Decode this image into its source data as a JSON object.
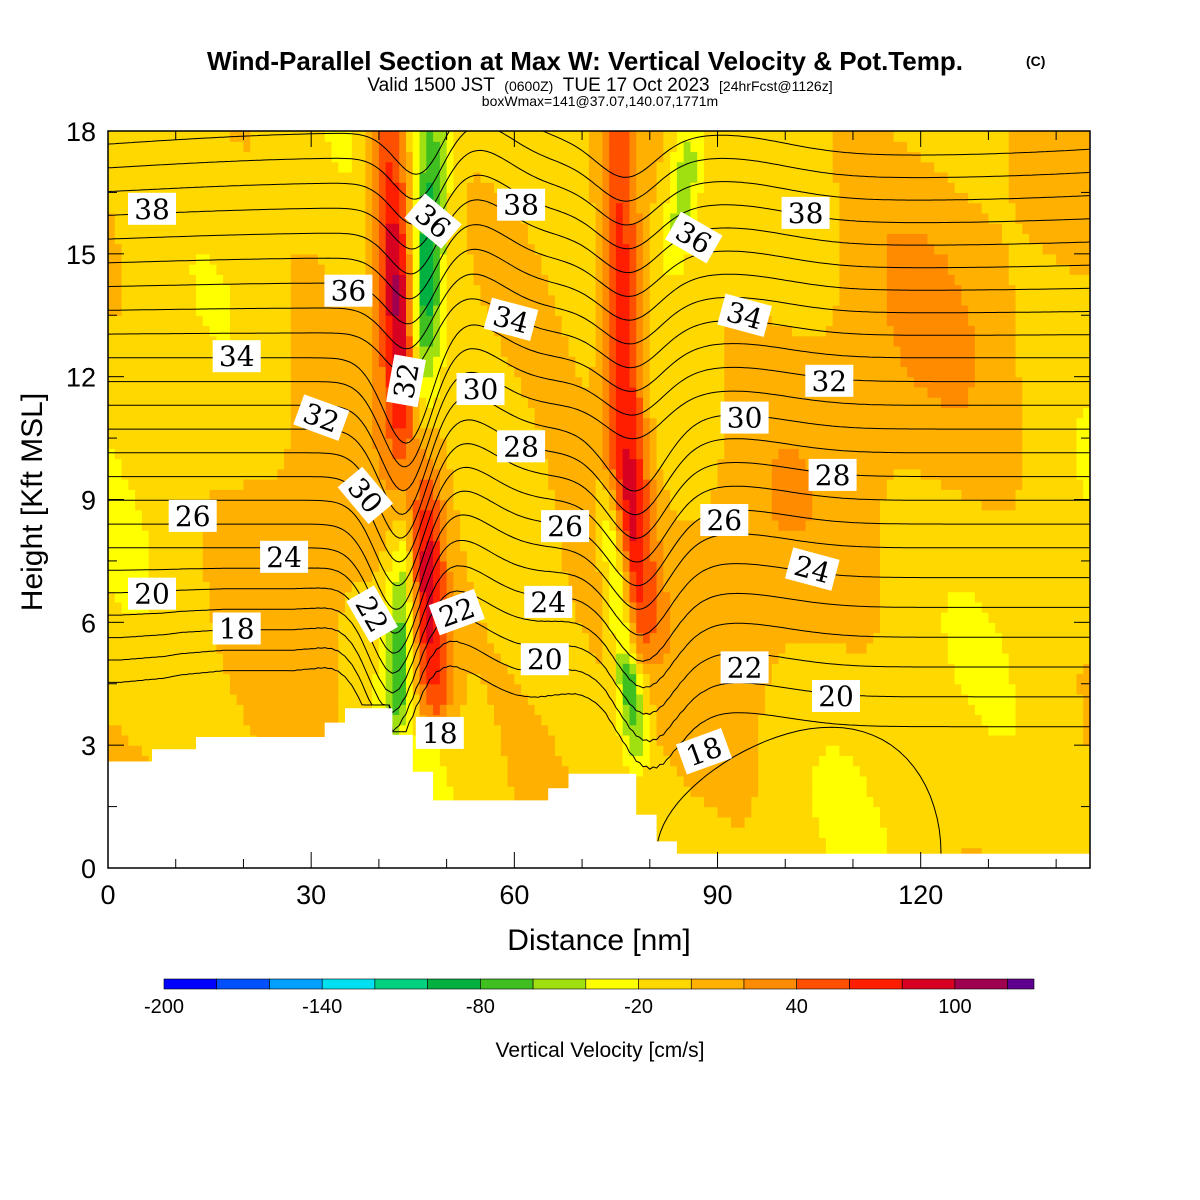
{
  "header": {
    "title": "Wind-Parallel Section at Max W: Vertical Velocity & Pot.Temp.",
    "copyright": "(C)",
    "valid_prefix": "Valid 1500 JST",
    "utc": "(0600Z)",
    "valid_date": "TUE 17 Oct 2023",
    "forecast": "[24hrFcst@1126z]",
    "box": "boxWmax=141@37.07,140.07,1771m"
  },
  "chart_data": {
    "type": "heatmap",
    "xlabel": "Distance [nm]",
    "ylabel": "Height [Kft MSL]",
    "xlim": [
      0,
      145
    ],
    "ylim": [
      0,
      18
    ],
    "x_ticks": [
      0,
      30,
      60,
      90,
      120
    ],
    "x_tick_labels": [
      "0",
      "30",
      "60",
      "90",
      "120"
    ],
    "y_ticks": [
      0,
      3,
      6,
      9,
      12,
      15,
      18
    ],
    "y_tick_labels": [
      "0",
      "3",
      "6",
      "9",
      "12",
      "15",
      "18"
    ],
    "background_velocity": -10,
    "colorbar": {
      "label": "Vertical Velocity [cm/s]",
      "bounds": [
        -200,
        130
      ],
      "step": 20,
      "tick_values": [
        -200,
        -140,
        -80,
        -20,
        40,
        100
      ],
      "tick_labels": [
        "-200",
        "-140",
        "-80",
        "-20",
        "40",
        "100"
      ],
      "colors": [
        "#0000ff",
        "#0050ff",
        "#00a0ff",
        "#00e0f0",
        "#00d080",
        "#00b040",
        "#40c020",
        "#a0e010",
        "#ffff00",
        "#ffd800",
        "#ffb000",
        "#ff8c00",
        "#ff5000",
        "#ff1e00",
        "#d80020",
        "#a00050",
        "#600090"
      ]
    },
    "terrain": [
      [
        0,
        2.6
      ],
      [
        6.5,
        2.6
      ],
      [
        6.5,
        2.9
      ],
      [
        13,
        2.9
      ],
      [
        13,
        3.2
      ],
      [
        32,
        3.2
      ],
      [
        32,
        3.55
      ],
      [
        35,
        3.55
      ],
      [
        35,
        3.9
      ],
      [
        42,
        3.9
      ],
      [
        42,
        3.25
      ],
      [
        45,
        3.25
      ],
      [
        45,
        2.35
      ],
      [
        48,
        2.35
      ],
      [
        48,
        1.65
      ],
      [
        65,
        1.65
      ],
      [
        65,
        1.95
      ],
      [
        68,
        1.95
      ],
      [
        68,
        2.3
      ],
      [
        78,
        2.3
      ],
      [
        78,
        1.3
      ],
      [
        81,
        1.3
      ],
      [
        81,
        0.65
      ],
      [
        84,
        0.65
      ],
      [
        84,
        0.35
      ],
      [
        145,
        0.35
      ]
    ],
    "velocity_features": [
      {
        "name": "updraft-1",
        "value": 125,
        "bottom": [
          48,
          4
        ],
        "top": [
          41,
          18
        ],
        "width": 6
      },
      {
        "name": "downdraft-1",
        "value": -100,
        "bottom": [
          43,
          4
        ],
        "top": [
          48,
          18
        ],
        "width": 5
      },
      {
        "name": "updraft-2",
        "value": 85,
        "bottom": [
          78,
          5.5
        ],
        "top": [
          75,
          18
        ],
        "width": 6
      },
      {
        "name": "downdraft-2",
        "value": -80,
        "bottom": [
          78,
          3
        ],
        "top": [
          74,
          9
        ],
        "width": 4
      },
      {
        "name": "downdraft-3",
        "value": -50,
        "bottom": [
          84,
          15
        ],
        "top": [
          86,
          18
        ],
        "width": 5
      }
    ],
    "isentropes": {
      "levels": [
        16,
        17,
        18,
        19,
        20,
        21,
        22,
        23,
        24,
        25,
        26,
        27,
        28,
        29,
        30,
        31,
        32,
        33,
        34,
        35,
        36,
        37,
        38,
        39
      ],
      "label_levels": [
        "18",
        "20",
        "22",
        "24",
        "26",
        "28",
        "30",
        "32",
        "34",
        "36",
        "38"
      ]
    },
    "contour_labels": [
      {
        "text": "38",
        "x": 6.5,
        "y": 16.1,
        "angle": 0
      },
      {
        "text": "38",
        "x": 61,
        "y": 16.2,
        "angle": 0
      },
      {
        "text": "38",
        "x": 103,
        "y": 16.0,
        "angle": 0
      },
      {
        "text": "36",
        "x": 48,
        "y": 15.8,
        "angle": 40
      },
      {
        "text": "36",
        "x": 86.5,
        "y": 15.4,
        "angle": 30
      },
      {
        "text": "36",
        "x": 35.5,
        "y": 14.1,
        "angle": 0
      },
      {
        "text": "34",
        "x": 59.5,
        "y": 13.4,
        "angle": 15
      },
      {
        "text": "34",
        "x": 94,
        "y": 13.5,
        "angle": 15
      },
      {
        "text": "34",
        "x": 19,
        "y": 12.5,
        "angle": 0
      },
      {
        "text": "32",
        "x": 44,
        "y": 11.9,
        "angle": -80
      },
      {
        "text": "32",
        "x": 106.5,
        "y": 11.9,
        "angle": 0
      },
      {
        "text": "32",
        "x": 31.5,
        "y": 11.0,
        "angle": 20
      },
      {
        "text": "30",
        "x": 55,
        "y": 11.7,
        "angle": 0
      },
      {
        "text": "30",
        "x": 94,
        "y": 11.0,
        "angle": 0
      },
      {
        "text": "28",
        "x": 61,
        "y": 10.3,
        "angle": 0
      },
      {
        "text": "28",
        "x": 107,
        "y": 9.6,
        "angle": 0
      },
      {
        "text": "30",
        "x": 38,
        "y": 9.1,
        "angle": 50
      },
      {
        "text": "26",
        "x": 12.5,
        "y": 8.6,
        "angle": 0
      },
      {
        "text": "26",
        "x": 67.5,
        "y": 8.35,
        "angle": 0
      },
      {
        "text": "26",
        "x": 91,
        "y": 8.5,
        "angle": 0
      },
      {
        "text": "24",
        "x": 26,
        "y": 7.6,
        "angle": 0
      },
      {
        "text": "24",
        "x": 65,
        "y": 6.5,
        "angle": 0
      },
      {
        "text": "24",
        "x": 104,
        "y": 7.3,
        "angle": 15
      },
      {
        "text": "20",
        "x": 6.5,
        "y": 6.7,
        "angle": 0
      },
      {
        "text": "22",
        "x": 39,
        "y": 6.2,
        "angle": 60
      },
      {
        "text": "22",
        "x": 51.5,
        "y": 6.25,
        "angle": -20
      },
      {
        "text": "18",
        "x": 19,
        "y": 5.85,
        "angle": 0
      },
      {
        "text": "20",
        "x": 64.5,
        "y": 5.1,
        "angle": 0
      },
      {
        "text": "22",
        "x": 94,
        "y": 4.9,
        "angle": 0
      },
      {
        "text": "20",
        "x": 107.5,
        "y": 4.2,
        "angle": 0
      },
      {
        "text": "18",
        "x": 49,
        "y": 3.3,
        "angle": 0
      },
      {
        "text": "18",
        "x": 88,
        "y": 2.85,
        "angle": -20
      }
    ]
  }
}
